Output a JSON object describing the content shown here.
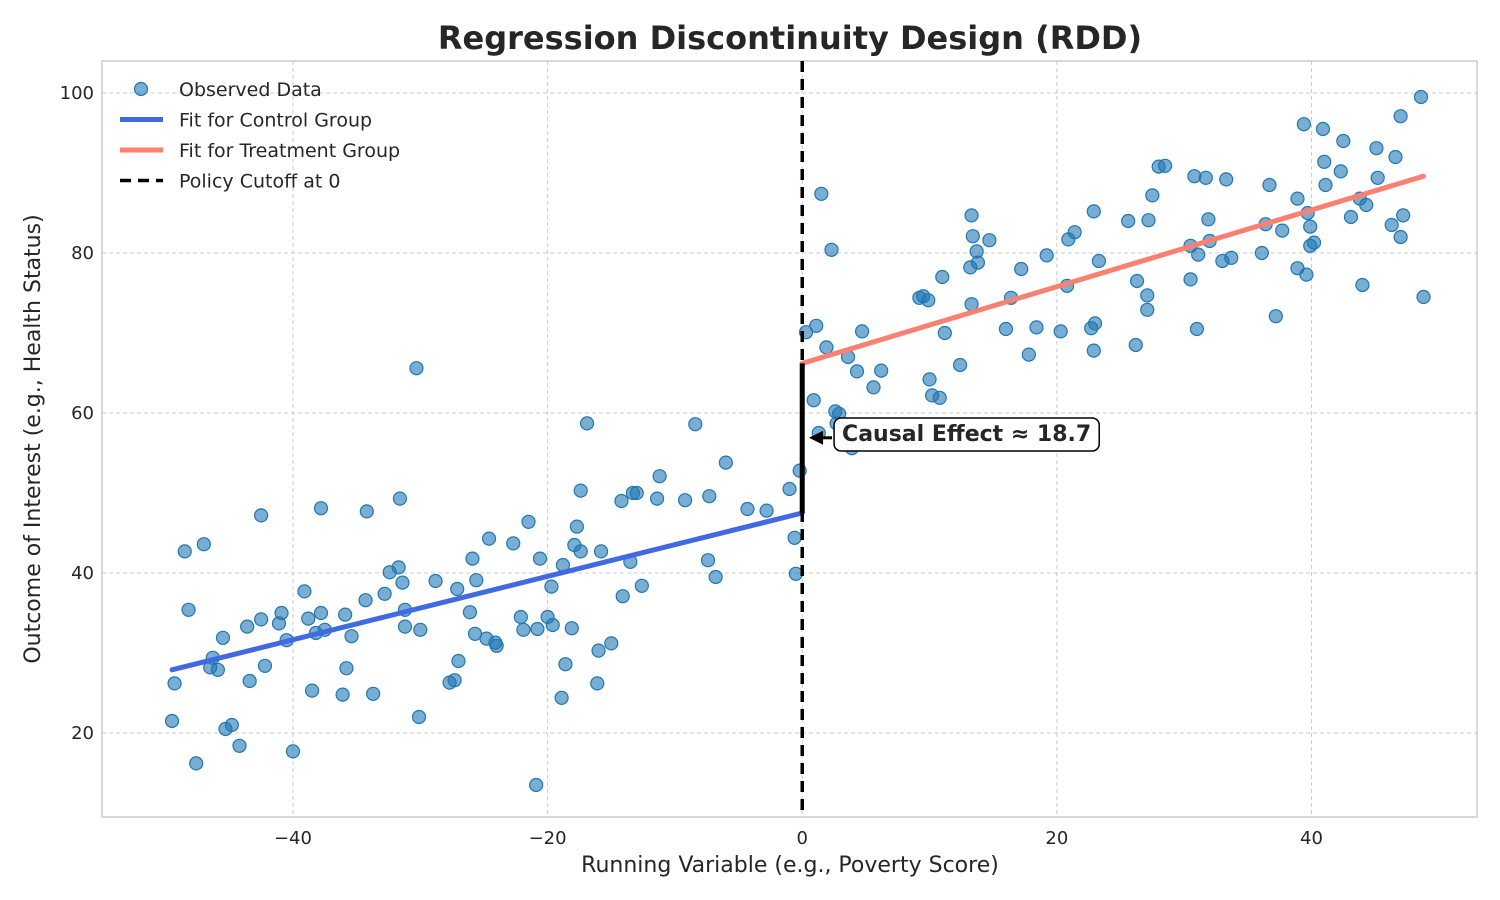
{
  "chart_data": {
    "type": "scatter",
    "title": "Regression Discontinuity Design (RDD)",
    "xlabel": "Running Variable (e.g., Poverty Score)",
    "ylabel": "Outcome of Interest (e.g., Health Status)",
    "xlim": [
      -55,
      53
    ],
    "ylim": [
      9.5,
      104
    ],
    "xticks": [
      -40,
      -20,
      0,
      20,
      40
    ],
    "yticks": [
      20,
      40,
      60,
      80,
      100
    ],
    "xtick_labels": [
      "−40",
      "−20",
      "0",
      "20",
      "40"
    ],
    "ytick_labels": [
      "20",
      "40",
      "60",
      "80",
      "100"
    ],
    "grid": true,
    "legend_position": "top-left",
    "series": [
      {
        "name": "Observed Data",
        "kind": "scatter",
        "color": "#1f77b4",
        "points": [
          [
            -49.5,
            21.5
          ],
          [
            -49.3,
            26.2
          ],
          [
            -48.5,
            42.7
          ],
          [
            -48.2,
            35.4
          ],
          [
            -47.6,
            16.2
          ],
          [
            -47.0,
            43.6
          ],
          [
            -46.5,
            28.2
          ],
          [
            -46.3,
            29.4
          ],
          [
            -45.9,
            27.9
          ],
          [
            -45.5,
            31.9
          ],
          [
            -45.3,
            20.5
          ],
          [
            -44.8,
            21.0
          ],
          [
            -44.2,
            18.4
          ],
          [
            -43.6,
            33.3
          ],
          [
            -43.4,
            26.5
          ],
          [
            -42.5,
            47.2
          ],
          [
            -42.5,
            34.2
          ],
          [
            -42.2,
            28.4
          ],
          [
            -41.1,
            33.7
          ],
          [
            -40.9,
            35.0
          ],
          [
            -40.5,
            31.6
          ],
          [
            -40.0,
            17.7
          ],
          [
            -39.1,
            37.7
          ],
          [
            -38.8,
            34.3
          ],
          [
            -38.5,
            25.3
          ],
          [
            -38.2,
            32.5
          ],
          [
            -37.8,
            48.1
          ],
          [
            -37.8,
            35.0
          ],
          [
            -37.5,
            32.9
          ],
          [
            -36.1,
            24.8
          ],
          [
            -35.9,
            34.8
          ],
          [
            -35.8,
            28.1
          ],
          [
            -35.4,
            32.1
          ],
          [
            -34.3,
            36.6
          ],
          [
            -34.2,
            47.7
          ],
          [
            -33.7,
            24.9
          ],
          [
            -32.8,
            37.4
          ],
          [
            -32.4,
            40.1
          ],
          [
            -31.7,
            40.7
          ],
          [
            -31.6,
            49.3
          ],
          [
            -31.4,
            38.8
          ],
          [
            -31.2,
            33.3
          ],
          [
            -31.2,
            35.4
          ],
          [
            -30.3,
            65.6
          ],
          [
            -30.1,
            22.0
          ],
          [
            -30.0,
            32.9
          ],
          [
            -28.8,
            39.0
          ],
          [
            -27.7,
            26.3
          ],
          [
            -27.3,
            26.6
          ],
          [
            -27.1,
            38.0
          ],
          [
            -27.0,
            29.0
          ],
          [
            -26.1,
            35.1
          ],
          [
            -25.9,
            41.8
          ],
          [
            -25.7,
            32.4
          ],
          [
            -25.6,
            39.1
          ],
          [
            -24.8,
            31.8
          ],
          [
            -24.6,
            44.3
          ],
          [
            -24.1,
            31.3
          ],
          [
            -24.0,
            30.9
          ],
          [
            -22.7,
            43.7
          ],
          [
            -22.1,
            34.5
          ],
          [
            -21.9,
            32.9
          ],
          [
            -21.5,
            46.4
          ],
          [
            -20.9,
            13.5
          ],
          [
            -20.8,
            33.0
          ],
          [
            -20.6,
            41.8
          ],
          [
            -20.0,
            34.5
          ],
          [
            -19.7,
            38.3
          ],
          [
            -19.6,
            33.5
          ],
          [
            -18.9,
            24.4
          ],
          [
            -18.8,
            41.0
          ],
          [
            -18.6,
            28.6
          ],
          [
            -18.1,
            33.1
          ],
          [
            -17.9,
            43.5
          ],
          [
            -17.7,
            45.8
          ],
          [
            -17.4,
            50.3
          ],
          [
            -17.4,
            42.7
          ],
          [
            -16.9,
            58.7
          ],
          [
            -16.1,
            26.2
          ],
          [
            -16.0,
            30.3
          ],
          [
            -15.8,
            42.7
          ],
          [
            -15.0,
            31.2
          ],
          [
            -14.2,
            49.0
          ],
          [
            -14.1,
            37.1
          ],
          [
            -13.5,
            41.4
          ],
          [
            -13.3,
            50.0
          ],
          [
            -13.0,
            50.0
          ],
          [
            -12.6,
            38.4
          ],
          [
            -11.4,
            49.3
          ],
          [
            -11.2,
            52.1
          ],
          [
            -9.2,
            49.1
          ],
          [
            -8.4,
            58.6
          ],
          [
            -7.4,
            41.6
          ],
          [
            -7.3,
            49.6
          ],
          [
            -6.8,
            39.5
          ],
          [
            -6.0,
            53.8
          ],
          [
            -4.3,
            48.0
          ],
          [
            -2.8,
            47.8
          ],
          [
            -1.0,
            50.5
          ],
          [
            -0.6,
            44.4
          ],
          [
            -0.5,
            39.9
          ],
          [
            -0.2,
            52.8
          ],
          [
            0.3,
            70.1
          ],
          [
            0.9,
            61.6
          ],
          [
            1.1,
            70.9
          ],
          [
            1.3,
            57.5
          ],
          [
            1.5,
            87.4
          ],
          [
            1.9,
            68.2
          ],
          [
            2.3,
            80.4
          ],
          [
            2.6,
            60.2
          ],
          [
            2.7,
            58.7
          ],
          [
            2.9,
            59.9
          ],
          [
            3.6,
            67.0
          ],
          [
            3.9,
            55.6
          ],
          [
            4.3,
            65.2
          ],
          [
            4.7,
            70.2
          ],
          [
            5.6,
            63.2
          ],
          [
            6.2,
            65.3
          ],
          [
            9.2,
            74.4
          ],
          [
            9.5,
            74.6
          ],
          [
            9.9,
            74.1
          ],
          [
            10.0,
            64.2
          ],
          [
            10.2,
            62.2
          ],
          [
            10.8,
            61.9
          ],
          [
            11.0,
            77.0
          ],
          [
            11.2,
            70.0
          ],
          [
            12.4,
            66.0
          ],
          [
            13.2,
            78.2
          ],
          [
            13.3,
            73.6
          ],
          [
            13.3,
            84.7
          ],
          [
            13.4,
            82.1
          ],
          [
            13.7,
            80.2
          ],
          [
            13.8,
            78.8
          ],
          [
            14.7,
            81.6
          ],
          [
            16.0,
            70.5
          ],
          [
            16.4,
            74.4
          ],
          [
            17.2,
            78.0
          ],
          [
            17.8,
            67.3
          ],
          [
            18.4,
            70.7
          ],
          [
            19.2,
            79.7
          ],
          [
            20.3,
            70.2
          ],
          [
            20.8,
            75.9
          ],
          [
            20.9,
            81.7
          ],
          [
            21.4,
            82.6
          ],
          [
            22.7,
            70.6
          ],
          [
            22.9,
            67.8
          ],
          [
            22.9,
            85.2
          ],
          [
            23.0,
            71.2
          ],
          [
            23.3,
            79.0
          ],
          [
            25.6,
            84.0
          ],
          [
            26.2,
            68.5
          ],
          [
            26.3,
            76.5
          ],
          [
            27.1,
            74.7
          ],
          [
            27.1,
            72.9
          ],
          [
            27.2,
            84.1
          ],
          [
            27.5,
            87.2
          ],
          [
            28.0,
            90.8
          ],
          [
            28.5,
            90.9
          ],
          [
            30.5,
            80.9
          ],
          [
            30.5,
            76.7
          ],
          [
            30.8,
            89.6
          ],
          [
            31.0,
            70.5
          ],
          [
            31.1,
            79.8
          ],
          [
            31.7,
            89.4
          ],
          [
            31.9,
            84.2
          ],
          [
            32.0,
            81.5
          ],
          [
            33.0,
            79.0
          ],
          [
            33.3,
            89.2
          ],
          [
            33.7,
            79.4
          ],
          [
            36.1,
            80.0
          ],
          [
            36.4,
            83.6
          ],
          [
            36.7,
            88.5
          ],
          [
            37.2,
            72.1
          ],
          [
            37.7,
            82.8
          ],
          [
            38.9,
            78.1
          ],
          [
            38.9,
            86.8
          ],
          [
            39.4,
            96.1
          ],
          [
            39.6,
            77.3
          ],
          [
            39.7,
            85.0
          ],
          [
            39.9,
            83.3
          ],
          [
            39.9,
            80.9
          ],
          [
            40.2,
            81.3
          ],
          [
            40.9,
            95.5
          ],
          [
            41.0,
            91.4
          ],
          [
            41.1,
            88.5
          ],
          [
            42.3,
            90.2
          ],
          [
            42.5,
            94.0
          ],
          [
            43.1,
            84.5
          ],
          [
            43.8,
            86.8
          ],
          [
            44.0,
            76.0
          ],
          [
            44.3,
            86.0
          ],
          [
            45.1,
            93.1
          ],
          [
            45.2,
            89.4
          ],
          [
            46.3,
            83.5
          ],
          [
            46.6,
            92.0
          ],
          [
            47.0,
            97.1
          ],
          [
            47.0,
            82.0
          ],
          [
            47.2,
            84.7
          ],
          [
            48.6,
            99.5
          ],
          [
            48.8,
            74.5
          ]
        ]
      },
      {
        "name": "Fit for Control Group",
        "kind": "line",
        "color": "#4169e1",
        "x": [
          -49.5,
          0
        ],
        "y": [
          27.9,
          47.5
        ]
      },
      {
        "name": "Fit for Treatment Group",
        "kind": "line",
        "color": "#fa8072",
        "x": [
          0,
          48.8
        ],
        "y": [
          66.2,
          89.6
        ]
      },
      {
        "name": "Policy Cutoff at 0",
        "kind": "vline",
        "color": "#000000",
        "x": 0
      }
    ],
    "annotation": {
      "text": "Causal Effect ≈ 18.7",
      "x": 0,
      "y_low": 47.5,
      "y_high": 66.2,
      "arrow_target": [
        0.3,
        56.9
      ],
      "text_position": [
        2.5,
        57.5
      ]
    }
  }
}
